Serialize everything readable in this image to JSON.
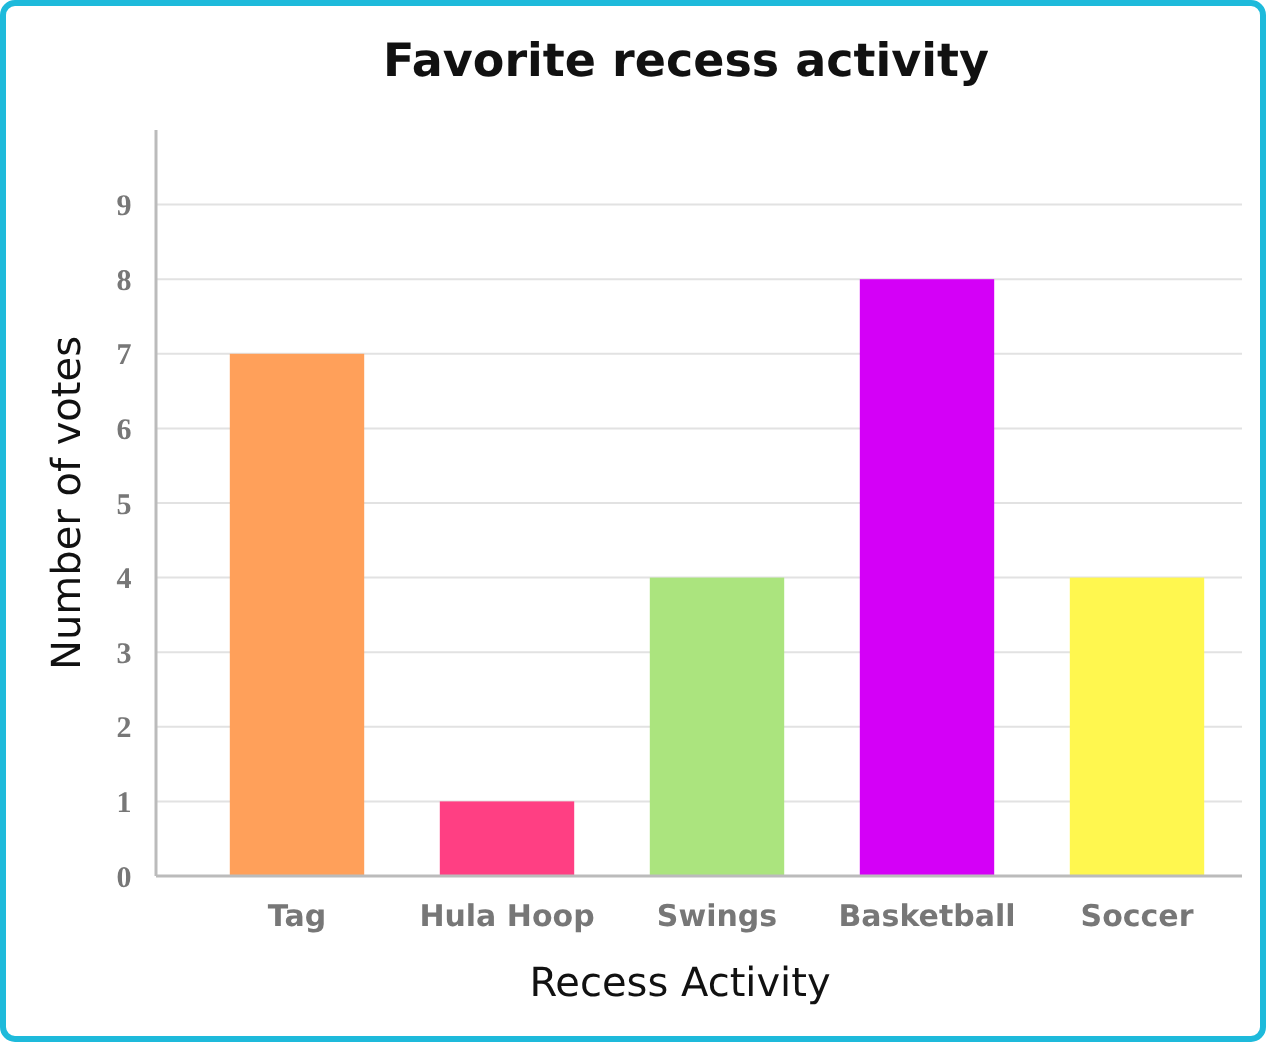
{
  "chart_data": {
    "type": "bar",
    "title": "Favorite recess activity",
    "xlabel": "Recess Activity",
    "ylabel": "Number of votes",
    "categories": [
      "Tag",
      "Hula Hoop",
      "Swings",
      "Basketball",
      "Soccer"
    ],
    "values": [
      7,
      1,
      4,
      8,
      4
    ],
    "colors": [
      "#ffa05a",
      "#ff3f83",
      "#abe47e",
      "#d400f7",
      "#fff74f"
    ],
    "ylim": [
      0,
      10
    ],
    "yticks": [
      0,
      1,
      2,
      3,
      4,
      5,
      6,
      7,
      8,
      9
    ],
    "grid": "y"
  }
}
